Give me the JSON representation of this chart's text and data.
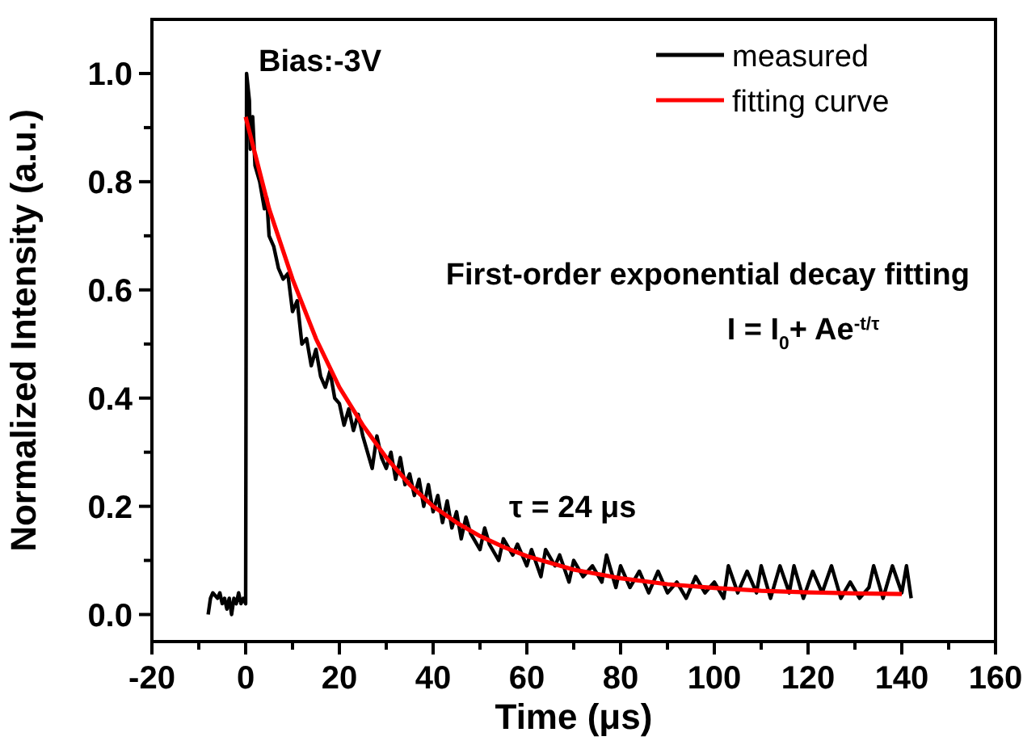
{
  "chart_data": {
    "type": "line",
    "xlabel": "Time (μs)",
    "ylabel": "Normalized Intensity (a.u.)",
    "xlim": [
      -20,
      160
    ],
    "ylim": [
      -0.05,
      1.1
    ],
    "xticks": [
      -20,
      {
        "value": -10,
        "label": null
      },
      0,
      {
        "value": 10,
        "label": null
      },
      20,
      {
        "value": 30,
        "label": null
      },
      40,
      {
        "value": 50,
        "label": null
      },
      60,
      {
        "value": 70,
        "label": null
      },
      80,
      {
        "value": 90,
        "label": null
      },
      100,
      {
        "value": 110,
        "label": null
      },
      120,
      {
        "value": 130,
        "label": null
      },
      140,
      {
        "value": 150,
        "label": null
      },
      160
    ],
    "yticks": [
      {
        "value": 0,
        "label": "0.0"
      },
      {
        "value": 0.1,
        "label": null
      },
      {
        "value": 0.2,
        "label": "0.2"
      },
      {
        "value": 0.3,
        "label": null
      },
      {
        "value": 0.4,
        "label": "0.4"
      },
      {
        "value": 0.5,
        "label": null
      },
      {
        "value": 0.6,
        "label": "0.6"
      },
      {
        "value": 0.7,
        "label": null
      },
      {
        "value": 0.8,
        "label": "0.8"
      },
      {
        "value": 0.9,
        "label": null
      },
      {
        "value": 1,
        "label": "1.0"
      }
    ],
    "grid": false,
    "legend": "top right",
    "marker": "none",
    "line_style": "solid",
    "annotations": [
      "Bias:-3V",
      "First-order exponential decay fitting",
      "I = I$_{0}$+ Ae$^{-t/τ}$",
      "τ = 24 μs"
    ],
    "series": [
      {
        "name": "measured",
        "color": "#000000",
        "x": [
          -8,
          -7.5,
          -7,
          -6,
          -5.5,
          -5,
          -4.5,
          -4,
          -3.5,
          -3,
          -2.5,
          -2,
          -1.5,
          -1,
          -0.5,
          0,
          0.2,
          0.8,
          1,
          1.5,
          2,
          3,
          4,
          4.5,
          5,
          6,
          7,
          8,
          9,
          10,
          11,
          12,
          13,
          14,
          15,
          16,
          17,
          18,
          19,
          20,
          21,
          22,
          23,
          24,
          25,
          26,
          27,
          28,
          29,
          30,
          31,
          32,
          33,
          34,
          35,
          36,
          37,
          38,
          39,
          40,
          41,
          42,
          43,
          44,
          45,
          46,
          47,
          48,
          50,
          51,
          52,
          54,
          55,
          57,
          58,
          60,
          61,
          63,
          64,
          66,
          67,
          69,
          70,
          72,
          74,
          76,
          77,
          79,
          80,
          82,
          84,
          86,
          88,
          90,
          92,
          94,
          96,
          98,
          100,
          102,
          103,
          105,
          107,
          109,
          110,
          112,
          114,
          116,
          117,
          119,
          121,
          123,
          125,
          127,
          129,
          131,
          133,
          134,
          136,
          138,
          140,
          141,
          142
        ],
        "values": [
          0.0,
          0.03,
          0.04,
          0.03,
          0.04,
          0.02,
          0.03,
          0.01,
          0.03,
          0.0,
          0.03,
          0.02,
          0.04,
          0.02,
          0.03,
          0.02,
          1.0,
          0.95,
          0.86,
          0.92,
          0.83,
          0.8,
          0.75,
          0.77,
          0.7,
          0.68,
          0.64,
          0.62,
          0.63,
          0.56,
          0.58,
          0.5,
          0.51,
          0.46,
          0.49,
          0.44,
          0.42,
          0.45,
          0.4,
          0.39,
          0.35,
          0.38,
          0.34,
          0.37,
          0.33,
          0.3,
          0.27,
          0.33,
          0.29,
          0.27,
          0.3,
          0.25,
          0.29,
          0.24,
          0.26,
          0.22,
          0.25,
          0.2,
          0.24,
          0.19,
          0.22,
          0.17,
          0.21,
          0.16,
          0.19,
          0.14,
          0.18,
          0.15,
          0.12,
          0.16,
          0.13,
          0.1,
          0.14,
          0.11,
          0.13,
          0.09,
          0.12,
          0.07,
          0.12,
          0.09,
          0.11,
          0.06,
          0.1,
          0.07,
          0.09,
          0.06,
          0.11,
          0.05,
          0.09,
          0.05,
          0.08,
          0.04,
          0.08,
          0.04,
          0.06,
          0.03,
          0.07,
          0.04,
          0.06,
          0.03,
          0.09,
          0.04,
          0.08,
          0.04,
          0.09,
          0.03,
          0.09,
          0.04,
          0.09,
          0.03,
          0.08,
          0.04,
          0.09,
          0.03,
          0.06,
          0.03,
          0.05,
          0.09,
          0.03,
          0.09,
          0.04,
          0.09,
          0.03
        ]
      },
      {
        "name": "fitting curve",
        "color": "#ff0000",
        "x": [
          0,
          5,
          10,
          15,
          20,
          25,
          30,
          35,
          40,
          45,
          50,
          55,
          60,
          70,
          80,
          90,
          100,
          110,
          120,
          130,
          140
        ],
        "values": [
          0.92,
          0.75,
          0.62,
          0.51,
          0.42,
          0.35,
          0.29,
          0.24,
          0.2,
          0.17,
          0.145,
          0.125,
          0.108,
          0.083,
          0.067,
          0.056,
          0.049,
          0.044,
          0.041,
          0.039,
          0.038
        ]
      }
    ]
  }
}
